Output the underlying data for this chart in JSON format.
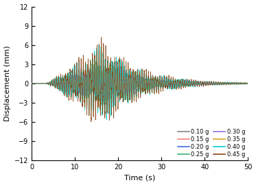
{
  "title": "",
  "xlabel": "Time (s)",
  "ylabel": "Displacement (mm)",
  "xlim": [
    0,
    50
  ],
  "ylim": [
    -12,
    12
  ],
  "yticks": [
    -12,
    -9,
    -6,
    -3,
    0,
    3,
    6,
    9,
    12
  ],
  "xticks": [
    0,
    10,
    20,
    30,
    40,
    50
  ],
  "series": [
    {
      "label": "0.10 g",
      "color": "#888888",
      "amplitude": 1.8,
      "phase": 0.0
    },
    {
      "label": "0.15 g",
      "color": "#F08080",
      "amplitude": 2.2,
      "phase": 0.3
    },
    {
      "label": "0.20 g",
      "color": "#4169E1",
      "amplitude": 2.8,
      "phase": 0.6
    },
    {
      "label": "0.25 g",
      "color": "#3CB371",
      "amplitude": 3.4,
      "phase": 0.9
    },
    {
      "label": "0.30 g",
      "color": "#9370DB",
      "amplitude": 4.2,
      "phase": 1.2
    },
    {
      "label": "0.35 g",
      "color": "#DAA520",
      "amplitude": 5.2,
      "phase": 1.5
    },
    {
      "label": "0.40 g",
      "color": "#00CED1",
      "amplitude": 6.0,
      "phase": 1.8
    },
    {
      "label": "0.45 g",
      "color": "#8B4513",
      "amplitude": 7.0,
      "phase": 2.1
    }
  ],
  "legend_ncol": 2,
  "linewidth": 0.5,
  "figsize": [
    3.73,
    2.7
  ],
  "dpi": 100
}
